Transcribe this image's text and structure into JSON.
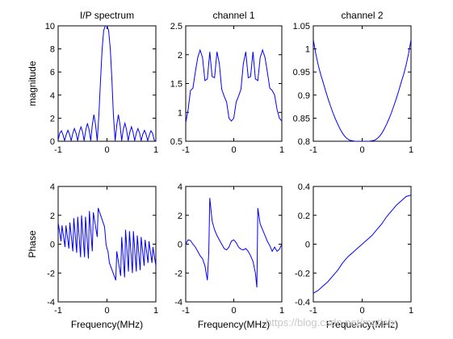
{
  "watermark": "https://blog.csdn.net/matlab",
  "chart_data": [
    {
      "type": "line",
      "title": "I/P spectrum",
      "xlabel": "",
      "ylabel": "magnitude",
      "xlim": [
        -1,
        1
      ],
      "ylim": [
        0,
        10
      ],
      "xticks": [
        "-1",
        "0",
        "1"
      ],
      "yticks": [
        "0",
        "2",
        "4",
        "6",
        "8",
        "10"
      ],
      "xtick_values": [
        -1,
        0,
        1
      ],
      "ytick_values": [
        0,
        2,
        4,
        6,
        8,
        10
      ],
      "series": [
        {
          "color": "#0000ff",
          "x": [
            -1.0,
            -0.967,
            -0.933,
            -0.9,
            -0.867,
            -0.833,
            -0.8,
            -0.767,
            -0.733,
            -0.7,
            -0.667,
            -0.633,
            -0.6,
            -0.567,
            -0.533,
            -0.5,
            -0.467,
            -0.433,
            -0.4,
            -0.367,
            -0.333,
            -0.3,
            -0.267,
            -0.233,
            -0.2,
            -0.167,
            -0.133,
            -0.1,
            -0.067,
            -0.033,
            0.0,
            0.033,
            0.067,
            0.1,
            0.133,
            0.167,
            0.2,
            0.233,
            0.267,
            0.3,
            0.333,
            0.367,
            0.4,
            0.433,
            0.467,
            0.5,
            0.533,
            0.567,
            0.6,
            0.633,
            0.667,
            0.7,
            0.733,
            0.767,
            0.8,
            0.833,
            0.867,
            0.9,
            0.933,
            0.967,
            1.0
          ],
          "y": [
            0.1,
            0.7,
            0.9,
            0.55,
            0.05,
            0.6,
            0.95,
            0.6,
            0.05,
            0.7,
            1.1,
            0.7,
            0.05,
            0.8,
            1.25,
            0.8,
            0.05,
            1.0,
            1.55,
            1.0,
            0.05,
            1.4,
            2.3,
            1.4,
            0.05,
            2.2,
            5.3,
            8.0,
            9.6,
            10.0,
            10.0,
            9.6,
            8.0,
            5.3,
            2.2,
            0.05,
            1.4,
            2.3,
            1.4,
            0.05,
            1.0,
            1.55,
            1.0,
            0.05,
            0.8,
            1.25,
            0.8,
            0.05,
            0.7,
            1.1,
            0.7,
            0.05,
            0.6,
            0.95,
            0.6,
            0.05,
            0.55,
            0.9,
            0.7,
            0.1,
            0.0
          ]
        }
      ]
    },
    {
      "type": "line",
      "title": "channel 1",
      "xlabel": "",
      "ylabel": "",
      "xlim": [
        -1,
        1
      ],
      "ylim": [
        0.5,
        2.5
      ],
      "xticks": [
        "-1",
        "0",
        "1"
      ],
      "yticks": [
        "0.5",
        "1",
        "1.5",
        "2",
        "2.5"
      ],
      "xtick_values": [
        -1,
        0,
        1
      ],
      "ytick_values": [
        0.5,
        1,
        1.5,
        2,
        2.5
      ],
      "series": [
        {
          "color": "#0000ff",
          "x": [
            -1.0,
            -0.95,
            -0.9,
            -0.85,
            -0.8,
            -0.75,
            -0.7,
            -0.65,
            -0.6,
            -0.55,
            -0.5,
            -0.45,
            -0.4,
            -0.35,
            -0.3,
            -0.25,
            -0.2,
            -0.15,
            -0.1,
            -0.05,
            0.0,
            0.05,
            0.1,
            0.15,
            0.2,
            0.25,
            0.3,
            0.35,
            0.4,
            0.45,
            0.5,
            0.55,
            0.6,
            0.65,
            0.7,
            0.75,
            0.8,
            0.85,
            0.9,
            0.95,
            1.0
          ],
          "y": [
            0.82,
            1.05,
            1.38,
            1.42,
            1.7,
            1.95,
            2.08,
            1.95,
            1.55,
            1.58,
            2.05,
            1.62,
            1.6,
            2.05,
            1.85,
            1.4,
            1.28,
            1.18,
            0.9,
            0.85,
            0.9,
            1.18,
            1.28,
            1.4,
            1.85,
            2.05,
            1.6,
            1.62,
            2.05,
            1.58,
            1.55,
            1.95,
            2.08,
            1.95,
            1.7,
            1.42,
            1.38,
            1.3,
            1.05,
            0.9,
            0.85
          ]
        }
      ]
    },
    {
      "type": "line",
      "title": "channel 2",
      "xlabel": "",
      "ylabel": "",
      "xlim": [
        -1,
        1
      ],
      "ylim": [
        0.8,
        1.05
      ],
      "xticks": [
        "-1",
        "0",
        "1"
      ],
      "yticks": [
        "0.8",
        "0.85",
        "0.9",
        "0.95",
        "1",
        "1.05"
      ],
      "xtick_values": [
        -1,
        0,
        1
      ],
      "ytick_values": [
        0.8,
        0.85,
        0.9,
        0.95,
        1,
        1.05
      ],
      "series": [
        {
          "color": "#0000ff",
          "x": [
            -1.0,
            -0.95,
            -0.9,
            -0.85,
            -0.8,
            -0.75,
            -0.7,
            -0.65,
            -0.6,
            -0.55,
            -0.5,
            -0.45,
            -0.4,
            -0.35,
            -0.3,
            -0.25,
            -0.2,
            -0.15,
            -0.1,
            -0.05,
            0.0,
            0.05,
            0.1,
            0.15,
            0.2,
            0.25,
            0.3,
            0.35,
            0.4,
            0.45,
            0.5,
            0.55,
            0.6,
            0.65,
            0.7,
            0.75,
            0.8,
            0.85,
            0.9,
            0.95,
            1.0
          ],
          "y": [
            1.02,
            0.99,
            0.965,
            0.945,
            0.928,
            0.91,
            0.893,
            0.877,
            0.862,
            0.849,
            0.837,
            0.826,
            0.817,
            0.81,
            0.805,
            0.802,
            0.801,
            0.8,
            0.8,
            0.8,
            0.8,
            0.8,
            0.8,
            0.8,
            0.801,
            0.802,
            0.805,
            0.81,
            0.817,
            0.826,
            0.837,
            0.849,
            0.862,
            0.877,
            0.893,
            0.91,
            0.928,
            0.945,
            0.965,
            0.99,
            1.02
          ]
        }
      ]
    },
    {
      "type": "line",
      "title": "",
      "xlabel": "Frequency(MHz)",
      "ylabel": "Phase",
      "xlim": [
        -1,
        1
      ],
      "ylim": [
        -4,
        4
      ],
      "xticks": [
        "-1",
        "0",
        "1"
      ],
      "yticks": [
        "-4",
        "-2",
        "0",
        "2",
        "4"
      ],
      "xtick_values": [
        -1,
        0,
        1
      ],
      "ytick_values": [
        -4,
        -2,
        0,
        2,
        4
      ],
      "series": [
        {
          "color": "#0000ff",
          "x": [
            -1.0,
            -0.94,
            -0.92,
            -0.86,
            -0.84,
            -0.78,
            -0.76,
            -0.7,
            -0.68,
            -0.62,
            -0.6,
            -0.54,
            -0.52,
            -0.46,
            -0.44,
            -0.38,
            -0.36,
            -0.3,
            -0.28,
            -0.2,
            -0.18,
            -0.05,
            -0.02,
            0.0,
            0.02,
            0.05,
            0.18,
            0.2,
            0.28,
            0.3,
            0.36,
            0.38,
            0.44,
            0.46,
            0.52,
            0.54,
            0.6,
            0.62,
            0.68,
            0.7,
            0.76,
            0.78,
            0.84,
            0.86,
            0.92,
            0.94,
            1.0
          ],
          "y": [
            1.5,
            0.2,
            1.3,
            -0.2,
            1.3,
            -0.3,
            1.5,
            -0.5,
            1.8,
            -0.6,
            1.9,
            -0.9,
            2.0,
            -0.9,
            1.9,
            -1.0,
            2.3,
            -0.5,
            2.2,
            0.5,
            2.5,
            1.2,
            0.0,
            -0.3,
            -0.5,
            -1.3,
            -2.5,
            -0.5,
            -2.2,
            0.5,
            -2.3,
            1.0,
            -1.9,
            0.9,
            -2.0,
            0.9,
            -1.9,
            0.6,
            -1.8,
            0.5,
            -1.5,
            0.3,
            -1.3,
            0.2,
            -1.3,
            -0.2,
            -1.5
          ]
        }
      ]
    },
    {
      "type": "line",
      "title": "",
      "xlabel": "Frequency(MHz)",
      "ylabel": "",
      "xlim": [
        -1,
        1
      ],
      "ylim": [
        -4,
        4
      ],
      "xticks": [
        "-1",
        "0",
        "1"
      ],
      "yticks": [
        "-4",
        "-2",
        "0",
        "2",
        "4"
      ],
      "xtick_values": [
        -1,
        0,
        1
      ],
      "ytick_values": [
        -4,
        -2,
        0,
        2,
        4
      ],
      "series": [
        {
          "color": "#0000ff",
          "x": [
            -1.0,
            -0.95,
            -0.9,
            -0.85,
            -0.8,
            -0.75,
            -0.7,
            -0.65,
            -0.6,
            -0.55,
            -0.52,
            -0.5,
            -0.45,
            -0.4,
            -0.35,
            -0.3,
            -0.25,
            -0.2,
            -0.15,
            -0.1,
            -0.05,
            0.0,
            0.05,
            0.1,
            0.15,
            0.2,
            0.25,
            0.3,
            0.35,
            0.4,
            0.45,
            0.48,
            0.5,
            0.55,
            0.6,
            0.65,
            0.7,
            0.75,
            0.8,
            0.85,
            0.9,
            0.95,
            1.0
          ],
          "y": [
            0.0,
            0.3,
            0.25,
            0.0,
            -0.2,
            -0.5,
            -0.8,
            -1.0,
            -1.5,
            -2.5,
            -0.5,
            3.2,
            1.6,
            1.0,
            0.6,
            0.3,
            0.0,
            -0.3,
            -0.4,
            -0.2,
            0.2,
            0.3,
            0.1,
            -0.2,
            -0.35,
            -0.4,
            -0.3,
            -0.5,
            -0.8,
            -1.2,
            -2.0,
            -3.0,
            2.5,
            1.4,
            1.0,
            0.6,
            0.2,
            -0.1,
            -0.5,
            -0.2,
            -0.5,
            -0.35,
            0.0
          ]
        }
      ]
    },
    {
      "type": "line",
      "title": "",
      "xlabel": "Frequency(MHz)",
      "ylabel": "",
      "xlim": [
        -1,
        1
      ],
      "ylim": [
        -0.4,
        0.4
      ],
      "xticks": [
        "-1",
        "0",
        "1"
      ],
      "yticks": [
        "-0.4",
        "-0.2",
        "0",
        "0.2",
        "0.4"
      ],
      "xtick_values": [
        -1,
        0,
        1
      ],
      "ytick_values": [
        -0.4,
        -0.2,
        0,
        0.2,
        0.4
      ],
      "series": [
        {
          "color": "#0000ff",
          "x": [
            -1.0,
            -0.9,
            -0.8,
            -0.7,
            -0.6,
            -0.5,
            -0.4,
            -0.3,
            -0.2,
            -0.1,
            0.0,
            0.1,
            0.2,
            0.3,
            0.4,
            0.5,
            0.6,
            0.7,
            0.8,
            0.9,
            1.0
          ],
          "y": [
            -0.34,
            -0.32,
            -0.29,
            -0.26,
            -0.22,
            -0.18,
            -0.13,
            -0.09,
            -0.06,
            -0.03,
            0.0,
            0.03,
            0.06,
            0.1,
            0.14,
            0.19,
            0.23,
            0.27,
            0.3,
            0.33,
            0.34
          ]
        }
      ]
    }
  ]
}
